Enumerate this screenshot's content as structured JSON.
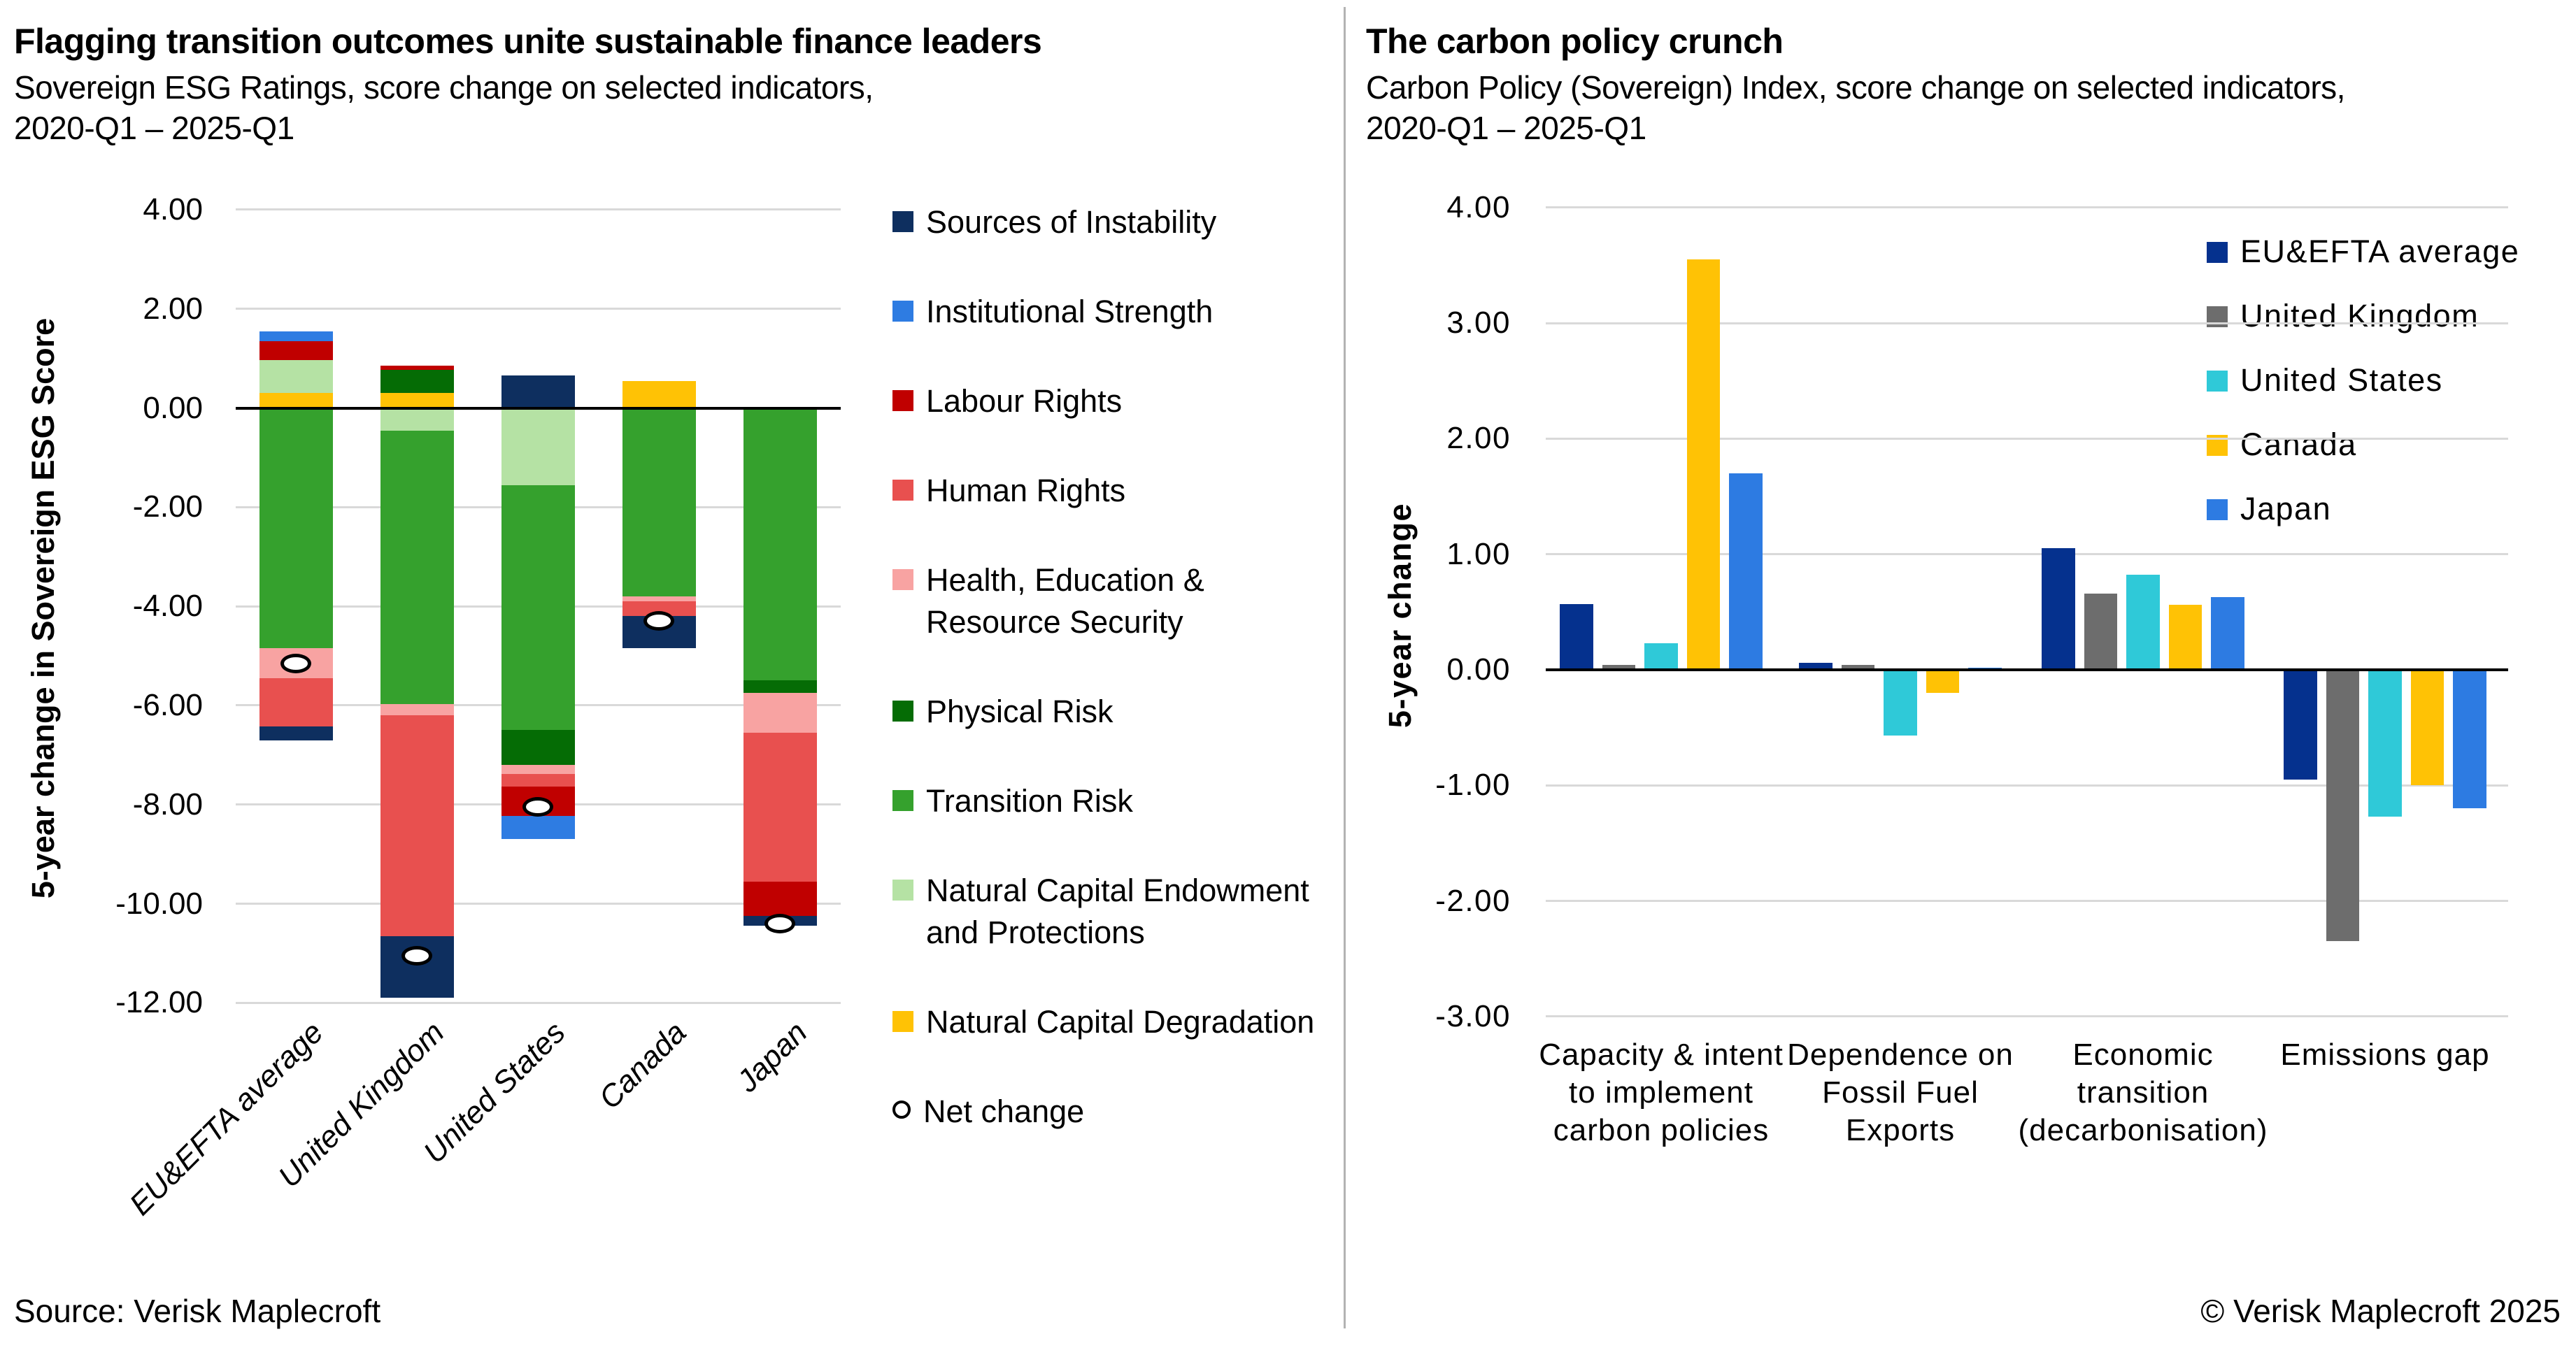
{
  "page": {
    "source_note": "Source: Verisk Maplecroft",
    "copyright": "© Verisk Maplecroft 2025"
  },
  "chart_data": [
    {
      "type": "bar",
      "variant": "stacked",
      "title": "Flagging transition outcomes unite sustainable finance leaders",
      "subtitle": [
        "Sovereign ESG Ratings, score change on selected indicators,",
        "2020-Q1 – 2025-Q1"
      ],
      "ylabel": "5-year change in Sovereign ESG Score",
      "ylim": [
        -12,
        4
      ],
      "ytick_step": 2,
      "grid": true,
      "legend_position": "right",
      "categories": [
        "EU&EFTA average",
        "United Kingdom",
        "United States",
        "Canada",
        "Japan"
      ],
      "series": [
        {
          "name": "Sources of Instability",
          "color": "#0e2f5f",
          "values": [
            -0.29,
            -1.24,
            0.65,
            -0.65,
            -0.2
          ]
        },
        {
          "name": "Institutional Strength",
          "color": "#2e7ce2",
          "values": [
            0.2,
            0,
            -0.46,
            0,
            0
          ]
        },
        {
          "name": "Labour Rights",
          "color": "#c00000",
          "values": [
            0.37,
            0.09,
            -0.59,
            0,
            -0.7
          ]
        },
        {
          "name": "Human Rights",
          "color": "#e8504f",
          "values": [
            -0.97,
            -4.46,
            -0.26,
            -0.3,
            -3.0
          ]
        },
        {
          "name": "Health, Education & Resource Security",
          "color": "#f8a3a2",
          "values": [
            -0.6,
            -0.23,
            -0.18,
            -0.1,
            -0.8
          ]
        },
        {
          "name": "Physical Risk",
          "color": "#056c05",
          "values": [
            0,
            0.47,
            -0.71,
            0,
            -0.25
          ]
        },
        {
          "name": "Transition Risk",
          "color": "#35a12d",
          "values": [
            -4.85,
            -5.51,
            -4.93,
            -3.8,
            -5.5
          ]
        },
        {
          "name": "Natural Capital Endowment and Protections",
          "color": "#b5e2a4",
          "values": [
            0.67,
            -0.46,
            -1.56,
            0,
            0
          ]
        },
        {
          "name": "Natural Capital Degradation",
          "color": "#ffc205",
          "values": [
            0.3,
            0.3,
            0,
            0.55,
            0
          ]
        }
      ],
      "stack_order": [
        "Natural Capital Degradation",
        "Natural Capital Endowment and Protections",
        "Transition Risk",
        "Physical Risk",
        "Health, Education & Resource Security",
        "Human Rights",
        "Labour Rights",
        "Institutional Strength",
        "Sources of Instability"
      ],
      "net_change": {
        "label": "Net change",
        "values": [
          -5.15,
          -11.05,
          -8.05,
          -4.3,
          -10.4
        ]
      }
    },
    {
      "type": "bar",
      "variant": "grouped",
      "title": "The carbon policy crunch",
      "subtitle": [
        "Carbon Policy (Sovereign) Index, score change on selected indicators,",
        "2020-Q1 – 2025-Q1"
      ],
      "ylabel": "5-year change",
      "ylim": [
        -3,
        4
      ],
      "ytick_step": 1,
      "grid": true,
      "legend_position": "top-right",
      "categories": [
        [
          "Capacity & intent",
          "to implement",
          "carbon policies"
        ],
        [
          "Dependence on",
          "Fossil Fuel",
          "Exports"
        ],
        [
          "Economic",
          "transition",
          "(decarbonisation)"
        ],
        [
          "Emissions gap"
        ]
      ],
      "series": [
        {
          "name": "EU&EFTA average",
          "color": "#05318e",
          "values": [
            0.57,
            0.06,
            1.05,
            -0.95
          ]
        },
        {
          "name": "United Kingdom",
          "color": "#6d6d6d",
          "values": [
            0.04,
            0.04,
            0.66,
            -2.35
          ]
        },
        {
          "name": "United States",
          "color": "#2fc9d8",
          "values": [
            0.23,
            -0.57,
            0.82,
            -1.27
          ]
        },
        {
          "name": "Canada",
          "color": "#ffc205",
          "values": [
            3.55,
            -0.2,
            0.56,
            -1.0
          ]
        },
        {
          "name": "Japan",
          "color": "#2d7be2",
          "values": [
            1.7,
            0.02,
            0.63,
            -1.2
          ]
        }
      ]
    }
  ],
  "colors": {
    "gridline": "#d9d9d9",
    "zero_axis": "#000000",
    "divider": "#b3b3b3"
  }
}
